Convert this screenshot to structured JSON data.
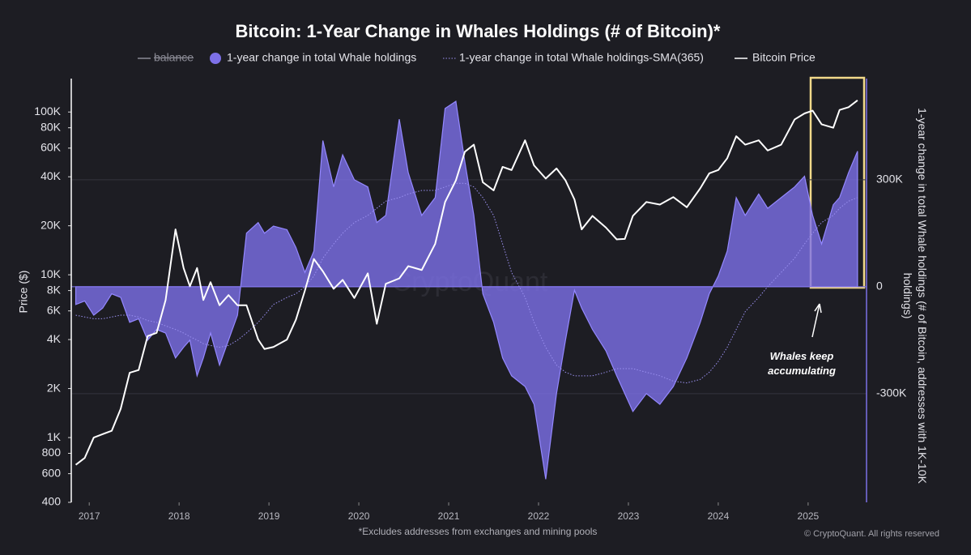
{
  "chart_data": {
    "type": "dual-axis-line-area",
    "title": "Bitcoin: 1-Year Change in Whales Holdings (# of Bitcoin)*",
    "ylabel": "Price ($)",
    "y2label": "1-year change in total Whale holdings (# of Bitcoin, addresses with 1K-10K holdings)",
    "footnote": "*Excludes addresses from exchanges and mining pools",
    "copyright": "© CryptoQuant. All rights reserved",
    "watermark": "CryptoQuant",
    "annotation": "Whales keep accumulating",
    "log_scale_y": true,
    "grid": true,
    "legend": "top",
    "xlim": [
      2016.8,
      2025.65
    ],
    "xticks": [
      2017,
      2018,
      2019,
      2020,
      2021,
      2022,
      2023,
      2024,
      2025
    ],
    "ylim": [
      400,
      155000
    ],
    "yticks": [
      400,
      600,
      800,
      {
        "value": 1000,
        "label": "1K"
      },
      {
        "value": 2000,
        "label": "2K"
      },
      {
        "value": 4000,
        "label": "4K"
      },
      {
        "value": 6000,
        "label": "6K"
      },
      {
        "value": 8000,
        "label": "8K"
      },
      {
        "value": 10000,
        "label": "10K"
      },
      {
        "value": 20000,
        "label": "20K"
      },
      {
        "value": 40000,
        "label": "40K"
      },
      {
        "value": 60000,
        "label": "60K"
      },
      {
        "value": 80000,
        "label": "80K"
      },
      {
        "value": 100000,
        "label": "100K"
      }
    ],
    "y2lim": [
      -605000,
      577000
    ],
    "y2ticks": [
      {
        "value": -300000,
        "label": "-300K"
      },
      0,
      {
        "value": 300000,
        "label": "300K"
      }
    ],
    "x": [
      2016.85,
      2016.95,
      2017.05,
      2017.15,
      2017.25,
      2017.35,
      2017.45,
      2017.55,
      2017.65,
      2017.75,
      2017.85,
      2017.96,
      2018.05,
      2018.12,
      2018.2,
      2018.27,
      2018.35,
      2018.45,
      2018.55,
      2018.65,
      2018.75,
      2018.88,
      2018.95,
      2019.05,
      2019.2,
      2019.3,
      2019.4,
      2019.5,
      2019.6,
      2019.72,
      2019.82,
      2019.95,
      2020.1,
      2020.2,
      2020.3,
      2020.45,
      2020.55,
      2020.7,
      2020.85,
      2020.96,
      2021.08,
      2021.18,
      2021.28,
      2021.38,
      2021.5,
      2021.6,
      2021.7,
      2021.85,
      2021.95,
      2022.08,
      2022.2,
      2022.3,
      2022.4,
      2022.48,
      2022.6,
      2022.75,
      2022.87,
      2022.96,
      2023.05,
      2023.2,
      2023.35,
      2023.5,
      2023.65,
      2023.8,
      2023.9,
      2024.0,
      2024.1,
      2024.2,
      2024.3,
      2024.45,
      2024.55,
      2024.7,
      2024.85,
      2024.96,
      2025.05,
      2025.15,
      2025.28,
      2025.35,
      2025.45,
      2025.55
    ],
    "series": [
      {
        "name": "balance",
        "color": "#8a8a94",
        "hidden": true
      },
      {
        "name": "1-year change in total Whale holdings",
        "color": "#7d70e8",
        "axis": "y2",
        "kind": "area",
        "values": [
          -50000,
          -40000,
          -80000,
          -60000,
          -20000,
          -30000,
          -100000,
          -90000,
          -150000,
          -120000,
          -130000,
          -200000,
          -170000,
          -150000,
          -250000,
          -200000,
          -130000,
          -220000,
          -150000,
          -80000,
          150000,
          180000,
          150000,
          170000,
          160000,
          110000,
          40000,
          100000,
          410000,
          280000,
          370000,
          300000,
          280000,
          180000,
          200000,
          470000,
          320000,
          200000,
          250000,
          500000,
          520000,
          350000,
          200000,
          -20000,
          -100000,
          -200000,
          -250000,
          -280000,
          -330000,
          -540000,
          -300000,
          -150000,
          -10000,
          -60000,
          -120000,
          -180000,
          -250000,
          -300000,
          -350000,
          -300000,
          -330000,
          -280000,
          -200000,
          -100000,
          -20000,
          30000,
          100000,
          250000,
          200000,
          260000,
          220000,
          250000,
          280000,
          310000,
          200000,
          120000,
          230000,
          250000,
          320000,
          380000
        ]
      },
      {
        "name": "1-year change in total Whale holdings-SMA(365)",
        "color": "#9a90f0",
        "axis": "y2",
        "kind": "dotted",
        "values": [
          -80000,
          -85000,
          -90000,
          -90000,
          -85000,
          -80000,
          -80000,
          -85000,
          -95000,
          -100000,
          -110000,
          -120000,
          -130000,
          -140000,
          -150000,
          -160000,
          -165000,
          -170000,
          -165000,
          -150000,
          -130000,
          -100000,
          -80000,
          -50000,
          -30000,
          -20000,
          0,
          30000,
          80000,
          120000,
          150000,
          180000,
          200000,
          220000,
          240000,
          250000,
          260000,
          270000,
          270000,
          280000,
          290000,
          290000,
          280000,
          250000,
          200000,
          120000,
          40000,
          -30000,
          -100000,
          -170000,
          -220000,
          -240000,
          -250000,
          -250000,
          -250000,
          -240000,
          -230000,
          -230000,
          -230000,
          -240000,
          -250000,
          -265000,
          -270000,
          -260000,
          -240000,
          -210000,
          -170000,
          -120000,
          -70000,
          -30000,
          0,
          40000,
          80000,
          120000,
          150000,
          180000,
          200000,
          220000,
          240000,
          250000
        ]
      },
      {
        "name": "Bitcoin Price",
        "color": "#ffffff",
        "kind": "line",
        "values": [
          680,
          750,
          1000,
          1050,
          1100,
          1500,
          2500,
          2600,
          4200,
          4400,
          7000,
          19000,
          11000,
          8500,
          11000,
          7000,
          9000,
          6500,
          7500,
          6500,
          6500,
          4000,
          3500,
          3600,
          4000,
          5300,
          8000,
          12500,
          10500,
          8200,
          9300,
          7200,
          10200,
          5000,
          8800,
          9500,
          11300,
          10700,
          15500,
          28000,
          38000,
          57000,
          63000,
          37000,
          33000,
          46000,
          44000,
          67000,
          47000,
          39000,
          45000,
          38000,
          29000,
          19000,
          23000,
          19500,
          16500,
          16600,
          23000,
          28000,
          27000,
          30000,
          26000,
          34000,
          42000,
          44000,
          52000,
          71000,
          63000,
          67000,
          58000,
          63000,
          90000,
          98000,
          102000,
          84000,
          80000,
          103000,
          107000,
          118000
        ]
      }
    ]
  }
}
